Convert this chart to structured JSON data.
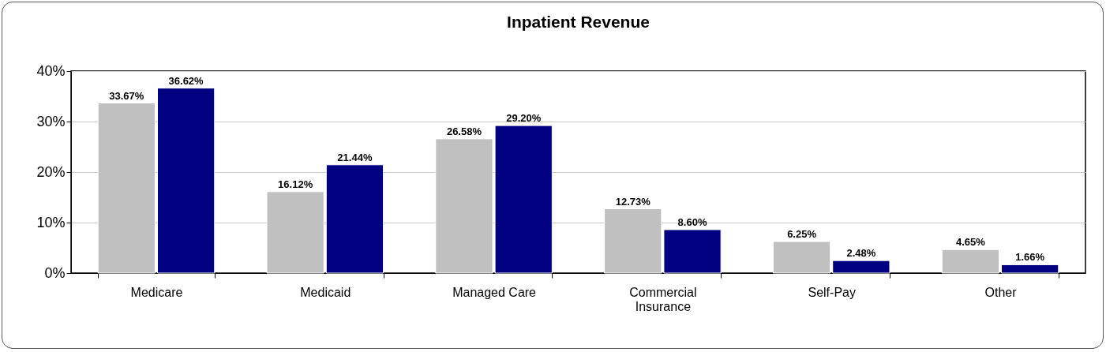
{
  "chart_data": {
    "type": "bar",
    "title": "Inpatient Revenue",
    "categories": [
      "Medicare",
      "Medicaid",
      "Managed Care",
      "Commercial Insurance",
      "Self-Pay",
      "Other"
    ],
    "series": [
      {
        "color": "#c0c0c0",
        "values": [
          33.67,
          16.12,
          26.58,
          12.73,
          6.25,
          4.65
        ],
        "value_labels": [
          "33.67%",
          "16.12%",
          "26.58%",
          "12.73%",
          "6.25%",
          "4.65%"
        ]
      },
      {
        "color": "#000080",
        "values": [
          36.62,
          21.44,
          29.2,
          8.6,
          2.48,
          1.66
        ],
        "value_labels": [
          "36.62%",
          "21.44%",
          "29.20%",
          "8.60%",
          "2.48%",
          "1.66%"
        ]
      }
    ],
    "ylim": [
      0,
      40
    ],
    "yticks": [
      {
        "value": 0,
        "label": "0%"
      },
      {
        "value": 10,
        "label": "10%"
      },
      {
        "value": 20,
        "label": "20%"
      },
      {
        "value": 30,
        "label": "30%"
      },
      {
        "value": 40,
        "label": "40%"
      }
    ],
    "grid": "y"
  }
}
